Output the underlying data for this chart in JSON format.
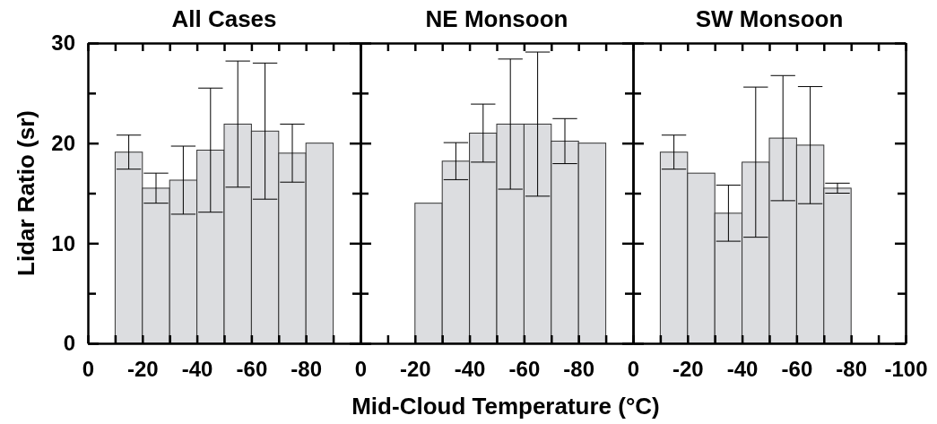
{
  "chart_data": [
    {
      "type": "histogram",
      "title": "All Cases",
      "ylabel": "Lidar Ratio (sr)",
      "bins": [
        -10,
        -20,
        -30,
        -40,
        -50,
        -60,
        -70,
        -80,
        -90
      ],
      "values": [
        19.1,
        15.5,
        16.3,
        19.3,
        21.9,
        21.2,
        19.0,
        20.0
      ],
      "errors": [
        1.7,
        1.5,
        3.4,
        6.2,
        6.3,
        6.8,
        2.9,
        null
      ],
      "color": "#dcdde0",
      "xlim": [
        0,
        -100
      ],
      "xticks": [
        0,
        {
          "value": -10,
          "label": null
        },
        -20,
        {
          "value": -30,
          "label": null
        },
        -40,
        {
          "value": -50,
          "label": null
        },
        -60,
        {
          "value": -70,
          "label": null
        },
        -80,
        {
          "value": -90,
          "label": null
        },
        {
          "value": -100,
          "label": null
        }
      ],
      "ylim": [
        0,
        30
      ],
      "yticks": [
        0,
        {
          "value": 5,
          "label": null
        },
        10,
        {
          "value": 15,
          "label": null
        },
        20,
        {
          "value": 25,
          "label": null
        },
        30
      ],
      "grid": false
    },
    {
      "type": "histogram",
      "title": "NE Monsoon",
      "xlabel": "Mid-Cloud Temperature (°C)",
      "bins": [
        -20,
        -30,
        -40,
        -50,
        -60,
        -70,
        -80,
        -90
      ],
      "values": [
        14.0,
        18.2,
        21.0,
        21.9,
        21.9,
        20.2,
        20.0
      ],
      "errors": [
        null,
        1.85,
        2.9,
        6.5,
        7.2,
        2.25,
        null
      ],
      "color": "#dcdde0",
      "xlim": [
        0,
        -100
      ],
      "xticks": [
        0,
        {
          "value": -10,
          "label": null
        },
        -20,
        {
          "value": -30,
          "label": null
        },
        -40,
        {
          "value": -50,
          "label": null
        },
        -60,
        {
          "value": -70,
          "label": null
        },
        -80,
        {
          "value": -90,
          "label": null
        },
        {
          "value": -100,
          "label": null
        }
      ],
      "ylim": [
        0,
        30
      ],
      "yticks": [
        0,
        {
          "value": 5,
          "label": null
        },
        10,
        {
          "value": 15,
          "label": null
        },
        20,
        {
          "value": 25,
          "label": null
        },
        30
      ],
      "tick_labels": "x",
      "grid": false
    },
    {
      "type": "histogram",
      "title": "SW Monsoon",
      "bins": [
        -10,
        -20,
        -30,
        -40,
        -50,
        -60,
        -70,
        -80
      ],
      "values": [
        19.1,
        17.0,
        13.0,
        18.1,
        20.5,
        19.8,
        15.5
      ],
      "errors": [
        1.7,
        null,
        2.8,
        7.5,
        6.25,
        5.85,
        0.5
      ],
      "color": "#dcdde0",
      "xlim": [
        0,
        -100
      ],
      "xticks": [
        0,
        {
          "value": -10,
          "label": null
        },
        -20,
        {
          "value": -30,
          "label": null
        },
        -40,
        {
          "value": -50,
          "label": null
        },
        -60,
        {
          "value": -70,
          "label": null
        },
        -80,
        {
          "value": -90,
          "label": null
        },
        -100
      ],
      "ylim": [
        0,
        30
      ],
      "yticks": [
        0,
        {
          "value": 5,
          "label": null
        },
        10,
        {
          "value": 15,
          "label": null
        },
        20,
        {
          "value": 25,
          "label": null
        },
        30
      ],
      "tick_labels": "x",
      "grid": false
    }
  ]
}
